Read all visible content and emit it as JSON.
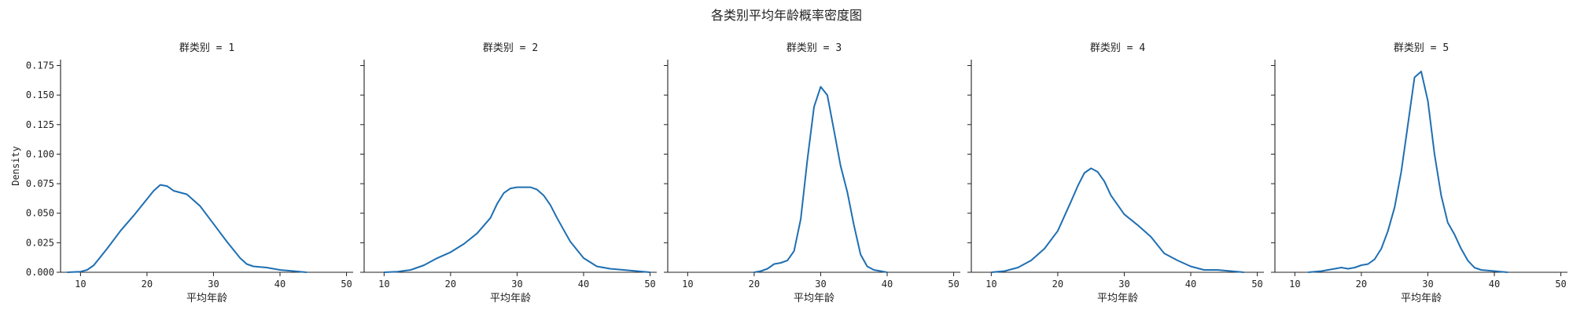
{
  "figure": {
    "title": "各类别平均年龄概率密度图"
  },
  "colors": {
    "line": "#1f6fb2",
    "axis": "#222222",
    "text": "#222222"
  },
  "chart_data": [
    {
      "type": "line",
      "title": "群类别 = 1",
      "xlabel": "平均年龄",
      "ylabel": "Density",
      "xlim": [
        7,
        51
      ],
      "ylim": [
        0,
        0.18
      ],
      "xticks": [
        "10",
        "20",
        "30",
        "40",
        "50"
      ],
      "yticks": [
        "0.000",
        "0.025",
        "0.050",
        "0.075",
        "0.100",
        "0.125",
        "0.150",
        "0.175"
      ],
      "x": [
        8,
        10,
        11,
        12,
        14,
        16,
        18,
        20,
        21,
        22,
        23,
        24,
        26,
        28,
        30,
        32,
        34,
        35,
        36,
        38,
        40,
        42,
        44
      ],
      "y": [
        0,
        0.0005,
        0.002,
        0.006,
        0.02,
        0.035,
        0.048,
        0.062,
        0.069,
        0.074,
        0.073,
        0.069,
        0.066,
        0.056,
        0.041,
        0.026,
        0.012,
        0.007,
        0.005,
        0.004,
        0.002,
        0.001,
        0
      ]
    },
    {
      "type": "line",
      "title": "群类别 = 2",
      "xlabel": "平均年龄",
      "ylabel": "",
      "xlim": [
        7,
        51
      ],
      "ylim": [
        0,
        0.18
      ],
      "xticks": [
        "10",
        "20",
        "30",
        "40",
        "50"
      ],
      "yticks": [],
      "x": [
        10,
        12,
        14,
        16,
        18,
        20,
        22,
        24,
        26,
        27,
        28,
        29,
        30,
        31,
        32,
        33,
        34,
        35,
        36,
        37,
        38,
        40,
        42,
        44,
        46,
        48,
        50
      ],
      "y": [
        0,
        0.0005,
        0.002,
        0.006,
        0.012,
        0.017,
        0.024,
        0.033,
        0.046,
        0.058,
        0.067,
        0.071,
        0.072,
        0.072,
        0.072,
        0.07,
        0.065,
        0.057,
        0.046,
        0.036,
        0.026,
        0.012,
        0.005,
        0.003,
        0.002,
        0.001,
        0
      ]
    },
    {
      "type": "line",
      "title": "群类别 = 3",
      "xlabel": "平均年龄",
      "ylabel": "",
      "xlim": [
        7,
        51
      ],
      "ylim": [
        0,
        0.18
      ],
      "xticks": [
        "10",
        "20",
        "30",
        "40",
        "50"
      ],
      "yticks": [],
      "x": [
        20,
        21,
        22,
        23,
        24,
        25,
        26,
        27,
        28,
        29,
        30,
        31,
        32,
        33,
        34,
        35,
        36,
        37,
        38,
        39,
        40
      ],
      "y": [
        0,
        0.001,
        0.003,
        0.007,
        0.008,
        0.01,
        0.018,
        0.045,
        0.095,
        0.14,
        0.157,
        0.15,
        0.12,
        0.09,
        0.068,
        0.04,
        0.015,
        0.005,
        0.002,
        0.001,
        0
      ]
    },
    {
      "type": "line",
      "title": "群类别 = 4",
      "xlabel": "平均年龄",
      "ylabel": "",
      "xlim": [
        7,
        51
      ],
      "ylim": [
        0,
        0.18
      ],
      "xticks": [
        "10",
        "20",
        "30",
        "40",
        "50"
      ],
      "yticks": [],
      "x": [
        10,
        12,
        14,
        16,
        18,
        20,
        22,
        23,
        24,
        25,
        26,
        27,
        28,
        30,
        32,
        34,
        36,
        38,
        40,
        42,
        44,
        46,
        48
      ],
      "y": [
        0,
        0.001,
        0.004,
        0.01,
        0.02,
        0.035,
        0.06,
        0.073,
        0.084,
        0.088,
        0.085,
        0.077,
        0.065,
        0.049,
        0.04,
        0.03,
        0.016,
        0.01,
        0.005,
        0.002,
        0.002,
        0.001,
        0
      ]
    },
    {
      "type": "line",
      "title": "群类别 = 5",
      "xlabel": "平均年龄",
      "ylabel": "",
      "xlim": [
        7,
        51
      ],
      "ylim": [
        0,
        0.18
      ],
      "xticks": [
        "10",
        "20",
        "30",
        "40",
        "50"
      ],
      "yticks": [],
      "x": [
        12,
        14,
        16,
        17,
        18,
        19,
        20,
        21,
        22,
        23,
        24,
        25,
        26,
        27,
        28,
        29,
        30,
        31,
        32,
        33,
        34,
        35,
        36,
        37,
        38,
        40,
        42
      ],
      "y": [
        0,
        0.001,
        0.003,
        0.004,
        0.003,
        0.004,
        0.006,
        0.007,
        0.011,
        0.02,
        0.035,
        0.055,
        0.085,
        0.125,
        0.165,
        0.17,
        0.145,
        0.1,
        0.065,
        0.042,
        0.032,
        0.02,
        0.01,
        0.004,
        0.002,
        0.001,
        0
      ]
    }
  ]
}
